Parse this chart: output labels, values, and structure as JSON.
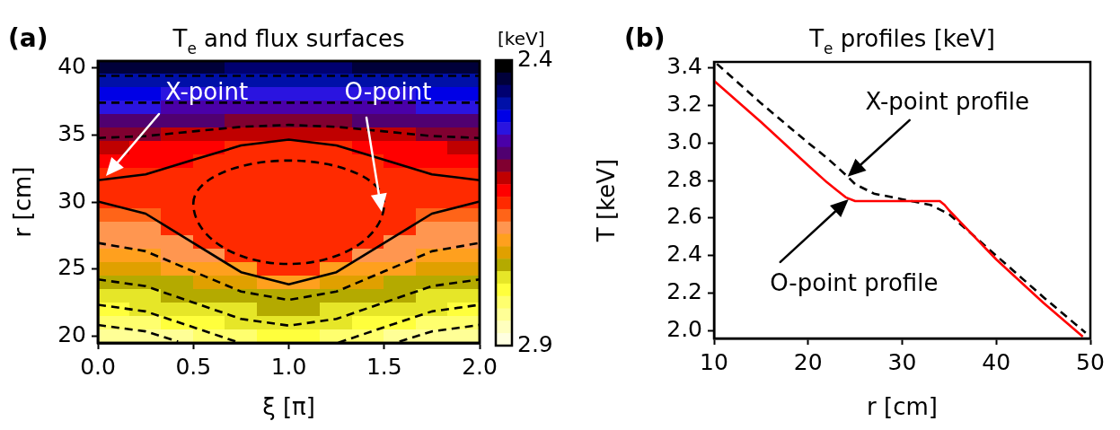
{
  "chart_data": [
    {
      "type": "heatmap",
      "clabel": "[keV]",
      "categories": [
        null,
        null,
        null,
        null,
        null,
        null,
        null,
        null,
        null,
        null,
        null,
        null
      ],
      "y_categories": [
        null,
        null,
        null,
        null,
        null,
        null,
        null,
        null,
        null,
        null,
        null,
        null,
        null,
        null,
        null,
        null,
        null,
        null,
        null,
        null,
        null
      ],
      "cells": [
        [
          2.43,
          2.43,
          2.44,
          2.44,
          2.45,
          2.45,
          2.45,
          2.45,
          2.44,
          2.44,
          2.43,
          2.43
        ],
        [
          2.47,
          2.47,
          2.47,
          2.47,
          2.48,
          2.48,
          2.48,
          2.48,
          2.47,
          2.47,
          2.47,
          2.47
        ],
        [
          2.5,
          2.5,
          2.51,
          2.51,
          2.51,
          2.51,
          2.51,
          2.51,
          2.51,
          2.51,
          2.5,
          2.5
        ],
        [
          2.53,
          2.53,
          2.54,
          2.54,
          2.55,
          2.55,
          2.55,
          2.55,
          2.54,
          2.54,
          2.53,
          2.53
        ],
        [
          2.56,
          2.56,
          2.57,
          2.57,
          2.58,
          2.58,
          2.58,
          2.58,
          2.57,
          2.57,
          2.56,
          2.56
        ],
        [
          2.59,
          2.59,
          2.6,
          2.6,
          2.61,
          2.61,
          2.61,
          2.61,
          2.6,
          2.6,
          2.59,
          2.59
        ],
        [
          2.61,
          2.62,
          2.62,
          2.62,
          2.65,
          2.65,
          2.65,
          2.65,
          2.62,
          2.62,
          2.62,
          2.61
        ],
        [
          2.63,
          2.63,
          2.63,
          2.65,
          2.65,
          2.65,
          2.65,
          2.65,
          2.65,
          2.63,
          2.63,
          2.63
        ],
        [
          2.64,
          2.64,
          2.65,
          2.65,
          2.65,
          2.65,
          2.65,
          2.65,
          2.65,
          2.65,
          2.64,
          2.64
        ],
        [
          2.65,
          2.65,
          2.65,
          2.65,
          2.65,
          2.65,
          2.65,
          2.65,
          2.65,
          2.65,
          2.65,
          2.65
        ],
        [
          2.65,
          2.65,
          2.65,
          2.65,
          2.65,
          2.65,
          2.65,
          2.65,
          2.65,
          2.65,
          2.65,
          2.65
        ],
        [
          2.68,
          2.68,
          2.65,
          2.65,
          2.65,
          2.65,
          2.65,
          2.65,
          2.65,
          2.65,
          2.68,
          2.68
        ],
        [
          2.69,
          2.69,
          2.65,
          2.65,
          2.65,
          2.65,
          2.65,
          2.65,
          2.65,
          2.65,
          2.69,
          2.69
        ],
        [
          2.7,
          2.69,
          2.69,
          2.65,
          2.65,
          2.65,
          2.65,
          2.65,
          2.65,
          2.69,
          2.69,
          2.7
        ],
        [
          2.72,
          2.71,
          2.7,
          2.7,
          2.65,
          2.65,
          2.65,
          2.65,
          2.7,
          2.7,
          2.71,
          2.72
        ],
        [
          2.73,
          2.73,
          2.72,
          2.72,
          2.71,
          2.65,
          2.65,
          2.71,
          2.72,
          2.72,
          2.73,
          2.73
        ],
        [
          2.76,
          2.75,
          2.75,
          2.74,
          2.73,
          2.72,
          2.72,
          2.73,
          2.74,
          2.75,
          2.75,
          2.76
        ],
        [
          2.77,
          2.77,
          2.76,
          2.76,
          2.75,
          2.75,
          2.75,
          2.75,
          2.76,
          2.76,
          2.77,
          2.77
        ],
        [
          2.8,
          2.79,
          2.79,
          2.77,
          2.77,
          2.76,
          2.76,
          2.77,
          2.77,
          2.79,
          2.79,
          2.8
        ],
        [
          2.83,
          2.82,
          2.81,
          2.8,
          2.79,
          2.79,
          2.79,
          2.79,
          2.8,
          2.81,
          2.82,
          2.83
        ],
        [
          2.84,
          2.84,
          2.84,
          2.83,
          2.82,
          2.81,
          2.81,
          2.82,
          2.83,
          2.84,
          2.84,
          2.84
        ]
      ],
      "clim": [
        2.9,
        2.4
      ],
      "cticks": [
        2.4,
        2.9
      ]
    },
    {
      "type": "line",
      "title": "T$_{e}$ and flux surfaces",
      "xlabel": "ξ [π]",
      "ylabel": "r [cm]",
      "xlim": [
        0,
        2
      ],
      "xticks": [
        {
          "value": 0,
          "label": "0.0"
        },
        0.5,
        {
          "value": 1,
          "label": "1.0"
        },
        1.5,
        {
          "value": 2,
          "label": "2.0"
        }
      ],
      "ylim": [
        19.5,
        40.5
      ],
      "yticks": [
        20,
        25,
        30,
        35,
        40
      ],
      "series": [
        {
          "color": "#000000",
          "line_style": "dashed",
          "x": [
            0,
            2
          ],
          "values": [
            39.4,
            39.4
          ]
        },
        {
          "color": "#000000",
          "line_style": "dashed",
          "x": [
            0,
            2
          ],
          "values": [
            37.4,
            37.4
          ]
        },
        {
          "color": "#000000",
          "line_style": "dashed",
          "x": [
            0,
            0.25,
            0.5,
            0.75,
            1,
            1.25,
            1.5,
            1.75,
            2
          ],
          "values": [
            34.77,
            34.91,
            35.26,
            35.6,
            35.74,
            35.6,
            35.26,
            34.91,
            34.77
          ]
        },
        {
          "color": "#000000",
          "line_style": "solid",
          "x": [
            0,
            0.25,
            0.5,
            0.75,
            1,
            1.25,
            1.5,
            1.75,
            2
          ],
          "values": [
            31.62,
            32.06,
            33.14,
            34.21,
            34.65,
            34.21,
            33.14,
            32.06,
            31.62
          ]
        },
        {
          "color": "#000000",
          "line_style": "solid",
          "x": [
            0,
            0.25,
            0.5,
            0.75,
            1,
            1.25,
            1.5,
            1.75,
            2
          ],
          "values": [
            30.04,
            29.13,
            26.95,
            24.77,
            23.86,
            24.77,
            26.95,
            29.13,
            30.04
          ]
        },
        {
          "color": "#000000",
          "line_style": "dashed",
          "x": [
            0,
            0.25,
            0.5,
            0.75,
            1,
            1.25,
            1.5,
            1.75,
            2
          ],
          "values": [
            26.95,
            26.33,
            24.83,
            23.33,
            22.7,
            23.33,
            24.83,
            26.33,
            26.95
          ]
        },
        {
          "color": "#000000",
          "line_style": "dashed",
          "x": [
            0,
            0.25,
            0.5,
            0.75,
            1,
            1.25,
            1.5,
            1.75,
            2
          ],
          "values": [
            24.23,
            23.73,
            22.51,
            21.29,
            20.79,
            21.29,
            22.51,
            23.73,
            24.23
          ]
        },
        {
          "color": "#000000",
          "line_style": "dashed",
          "x": [
            0,
            0.25,
            0.5,
            0.74
          ],
          "values": [
            22.34,
            21.85,
            20.67,
            19.52
          ]
        },
        {
          "color": "#000000",
          "line_style": "dashed",
          "x": [
            1.26,
            1.5,
            1.75,
            2
          ],
          "values": [
            19.52,
            20.67,
            21.85,
            22.34
          ]
        },
        {
          "color": "#000000",
          "line_style": "dashed",
          "x": [
            0,
            0.25,
            0.42
          ],
          "values": [
            20.84,
            20.36,
            19.6
          ]
        },
        {
          "color": "#000000",
          "line_style": "dashed",
          "x": [
            1.58,
            1.75,
            2
          ],
          "values": [
            19.6,
            20.36,
            20.84
          ]
        }
      ],
      "marker": "none",
      "annotations": [
        "(a)",
        "X-point",
        "O-point"
      ]
    },
    {
      "type": "line",
      "title": "T$_{e}$ profiles [keV]",
      "xlabel": "r [cm]",
      "ylabel": "T [keV]",
      "xlim": [
        10,
        50
      ],
      "xticks": [
        10,
        20,
        30,
        40,
        50
      ],
      "ylim": [
        1.96,
        3.43
      ],
      "yticks": [
        {
          "value": 2,
          "label": "2.0"
        },
        2.2,
        2.4,
        2.6,
        2.8,
        {
          "value": 3,
          "label": "3.0"
        },
        3.2,
        3.4
      ],
      "series": [
        {
          "color": "#ff0000",
          "line_style": "solid",
          "x": [
            10,
            15,
            20,
            22,
            23,
            24,
            25,
            30,
            34,
            34.5,
            35,
            40,
            45,
            49.2
          ],
          "values": [
            3.33,
            3.11,
            2.88,
            2.79,
            2.75,
            2.71,
            2.69,
            2.69,
            2.69,
            2.67,
            2.64,
            2.38,
            2.15,
            1.97
          ]
        },
        {
          "color": "#000000",
          "line_style": "dashed",
          "x": [
            10.3,
            15,
            20,
            22,
            24,
            25,
            27,
            30,
            33,
            35,
            40,
            45,
            49.5
          ],
          "values": [
            3.42,
            3.21,
            3.0,
            2.92,
            2.83,
            2.78,
            2.73,
            2.7,
            2.67,
            2.62,
            2.4,
            2.18,
            1.99
          ]
        }
      ],
      "marker": "none",
      "annotations": [
        "(b)",
        {
          "text": "X-point profile",
          "x": 24.2,
          "y": 2.82
        },
        {
          "text": "O-point profile",
          "x": 24.3,
          "y": 2.7
        }
      ]
    }
  ]
}
